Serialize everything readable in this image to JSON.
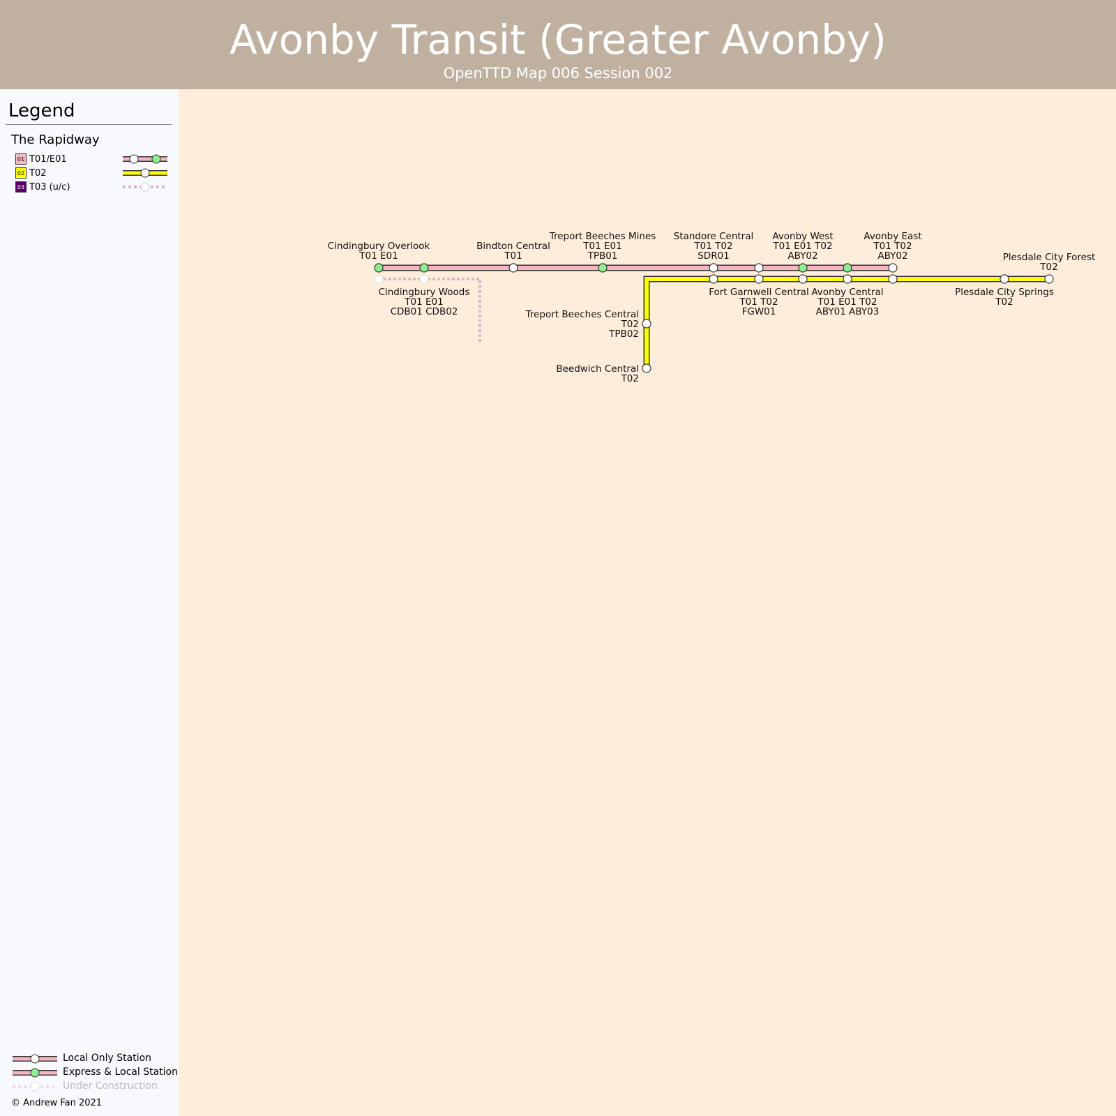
{
  "header": {
    "title": "Avonby Transit (Greater Avonby)",
    "subtitle": "OpenTTD Map 006 Session 002"
  },
  "legend": {
    "title": "Legend",
    "section": "The Rapidway",
    "lines": [
      {
        "badge": "01",
        "label": "T01/E01"
      },
      {
        "badge": "02",
        "label": "T02"
      },
      {
        "badge": "03",
        "label": "T03 (u/c)"
      }
    ],
    "keys": [
      "Local Only Station",
      "Express & Local Station",
      "Under Construction"
    ],
    "copyright": "© Andrew Fan 2021"
  },
  "stations": [
    {
      "lines": [
        "Cindingbury Overlook",
        "T01 E01"
      ]
    },
    {
      "lines": [
        "Cindingbury Woods",
        "T01 E01",
        "CDB01 CDB02"
      ]
    },
    {
      "lines": [
        "Bindton Central",
        "T01"
      ]
    },
    {
      "lines": [
        "Treport Beeches Mines",
        "T01 E01",
        "TPB01"
      ]
    },
    {
      "lines": [
        "Standore Central",
        "T01 T02",
        "SDR01"
      ]
    },
    {
      "lines": [
        "Fort Garnwell Central",
        "T01 T02",
        "FGW01"
      ]
    },
    {
      "lines": [
        "Avonby West",
        "T01 E01 T02",
        "ABY02"
      ]
    },
    {
      "lines": [
        "Avonby Central",
        "T01 E01 T02",
        "ABY01 ABY03"
      ]
    },
    {
      "lines": [
        "Avonby East",
        "T01 T02",
        "ABY02"
      ]
    },
    {
      "lines": [
        "Plesdale City Forest",
        "T02"
      ]
    },
    {
      "lines": [
        "Plesdale City Springs",
        "T02"
      ]
    },
    {
      "lines": [
        "Treport Beeches Central",
        "T02",
        "TPB02"
      ]
    },
    {
      "lines": [
        "Beedwich Central",
        "T02"
      ]
    }
  ]
}
